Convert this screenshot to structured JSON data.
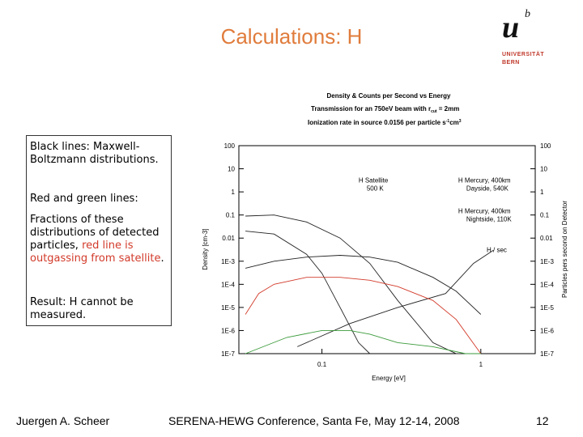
{
  "slide": {
    "title": "Calculations: H",
    "logo": {
      "mark_u": "u",
      "mark_b": "b",
      "line1": "UNIVERSITÄT",
      "line2": "BERN"
    },
    "notes": {
      "p1": "Black lines: Maxwell-Boltzmann distributions.",
      "p2": "Red and green lines:",
      "p3_black": "Fractions of these distributions of detected particles, ",
      "p3_red": "red line is outgassing from satellite",
      "p3_end": ".",
      "p4": "Result: H cannot be measured."
    },
    "footer": {
      "author": "Juergen A. Scheer",
      "conference": "SERENA-HEWG Conference, Santa Fe, May 12-14, 2008",
      "page": "12"
    },
    "colors": {
      "title": "#e07c3c",
      "accent_red": "#d23a2a",
      "series_black": "#222222",
      "series_red": "#d23a2a",
      "series_green": "#3a9a3a"
    }
  },
  "chart_data": {
    "type": "line",
    "title": "Density & Counts per Second vs Energy",
    "subtitle_line1": "Transmission for an 750eV beam with r",
    "subtitle_sub": "cut",
    "subtitle_line1_end": " = 2mm",
    "subtitle_line2": "Ionization rate in source 0.0156 per particle s",
    "subtitle_line2_sup": "-1",
    "subtitle_line2_mid": "cm",
    "subtitle_line2_sup2": "3",
    "xlabel": "Energy [eV]",
    "ylabel_left": "Density [cm-3]",
    "ylabel_right": "Particles pers second on Detector",
    "xscale": "log",
    "yscale": "log",
    "xlim": [
      0.03,
      2.2
    ],
    "ylim": [
      1e-07,
      100
    ],
    "x_ticks": [
      {
        "v": 0.1,
        "label": "0.1"
      },
      {
        "v": 1,
        "label": "1"
      }
    ],
    "y_ticks": [
      {
        "v": 100,
        "label": "100"
      },
      {
        "v": 10,
        "label": "10"
      },
      {
        "v": 1,
        "label": "1"
      },
      {
        "v": 0.1,
        "label": "0.1"
      },
      {
        "v": 0.01,
        "label": "0.01"
      },
      {
        "v": 0.001,
        "label": "1E-3"
      },
      {
        "v": 0.0001,
        "label": "1E-4"
      },
      {
        "v": 1e-05,
        "label": "1E-5"
      },
      {
        "v": 1e-06,
        "label": "1E-6"
      },
      {
        "v": 1e-07,
        "label": "1E-7"
      }
    ],
    "series": [
      {
        "name": "H Satellite 500 K",
        "color": "black",
        "x": [
          0.033,
          0.05,
          0.08,
          0.13,
          0.2,
          0.3,
          0.5,
          0.7,
          1.0
        ],
        "y": [
          0.09,
          0.1,
          0.05,
          0.01,
          0.0008,
          2e-05,
          3e-07,
          1e-07,
          1e-07
        ]
      },
      {
        "name": "H Mercury, 400km Dayside, 540K",
        "color": "black",
        "x": [
          0.033,
          0.05,
          0.08,
          0.13,
          0.2,
          0.3,
          0.5,
          0.7,
          1.0
        ],
        "y": [
          0.0005,
          0.001,
          0.0015,
          0.0018,
          0.0015,
          0.0009,
          0.0002,
          5e-05,
          5e-06
        ]
      },
      {
        "name": "H Mercury, 400km Nightside, 110K",
        "color": "black",
        "x": [
          0.033,
          0.05,
          0.08,
          0.1,
          0.13,
          0.17,
          0.2
        ],
        "y": [
          0.02,
          0.015,
          0.002,
          0.0003,
          1e-05,
          3e-07,
          1e-07
        ]
      },
      {
        "name": "H / sec",
        "color": "black",
        "x": [
          0.07,
          0.15,
          0.3,
          0.6,
          0.9,
          1.2
        ],
        "y": [
          2e-07,
          2e-06,
          1e-05,
          4e-05,
          0.0008,
          0.003
        ]
      },
      {
        "name": "red (satellite outgassing, detected)",
        "color": "red",
        "x": [
          0.033,
          0.04,
          0.05,
          0.08,
          0.13,
          0.2,
          0.3,
          0.5,
          0.7,
          1.0
        ],
        "y": [
          5e-06,
          4e-05,
          0.0001,
          0.0002,
          0.0002,
          0.00015,
          8e-05,
          2e-05,
          3e-06,
          1e-07
        ]
      },
      {
        "name": "green (detected fraction)",
        "color": "green",
        "x": [
          0.033,
          0.06,
          0.1,
          0.15,
          0.2,
          0.3,
          0.5,
          0.8,
          1.0
        ],
        "y": [
          1e-07,
          5e-07,
          1e-06,
          1e-06,
          7e-07,
          3e-07,
          2e-07,
          1e-07,
          1e-07
        ]
      }
    ],
    "annotations": [
      {
        "text_line1": "H Satellite",
        "text_line2": "500 K",
        "x": 0.17,
        "y": 2.5
      },
      {
        "text_line1": "H Mercury, 400km",
        "text_line2": "Dayside, 540K",
        "x": 0.72,
        "y": 2.5
      },
      {
        "text_line1": "H Mercury, 400km",
        "text_line2": "Nightside, 110K",
        "x": 0.72,
        "y": 0.12
      },
      {
        "text_line1": "H / sec",
        "text_line2": "",
        "x": 1.3,
        "y": 0.0025
      }
    ]
  }
}
